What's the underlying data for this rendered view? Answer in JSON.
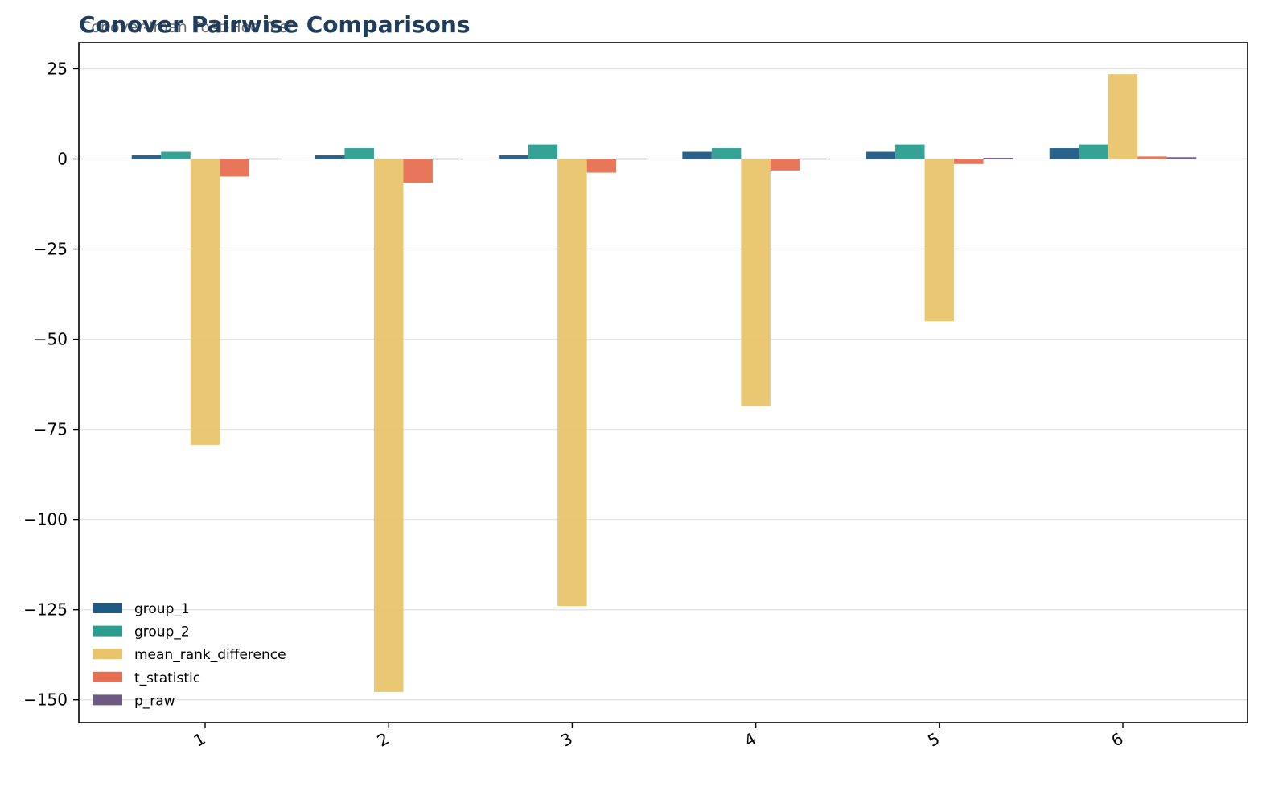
{
  "chart_data": {
    "type": "bar",
    "title": "Conover Pairwise Comparisons",
    "subtitle": "Conover-Iman Post-Hoc Test",
    "xlabel": "",
    "ylabel": "",
    "categories": [
      "1",
      "2",
      "3",
      "4",
      "5",
      "6"
    ],
    "ylim": [
      -155,
      32
    ],
    "yticks": [
      25,
      0,
      -25,
      -50,
      -75,
      -100,
      -125,
      -150
    ],
    "grid": "horizontal",
    "legend_position": "lower-left",
    "series": [
      {
        "name": "group_1",
        "color": "#1f5a85",
        "values": [
          1,
          1,
          1,
          2,
          2,
          3
        ]
      },
      {
        "name": "group_2",
        "color": "#2a9d8f",
        "values": [
          2,
          3,
          4,
          3,
          4,
          4
        ]
      },
      {
        "name": "mean_rank_difference",
        "color": "#e9c46a",
        "values": [
          -79.3,
          -147.8,
          -124.0,
          -68.5,
          -45.0,
          23.5
        ]
      },
      {
        "name": "t_statistic",
        "color": "#e76f51",
        "values": [
          -4.9,
          -6.6,
          -3.8,
          -3.2,
          -1.4,
          0.7
        ]
      },
      {
        "name": "p_raw",
        "color": "#6d5a82",
        "values": [
          0.0,
          0.0,
          0.0,
          0.0,
          0.1,
          0.5
        ]
      }
    ]
  }
}
